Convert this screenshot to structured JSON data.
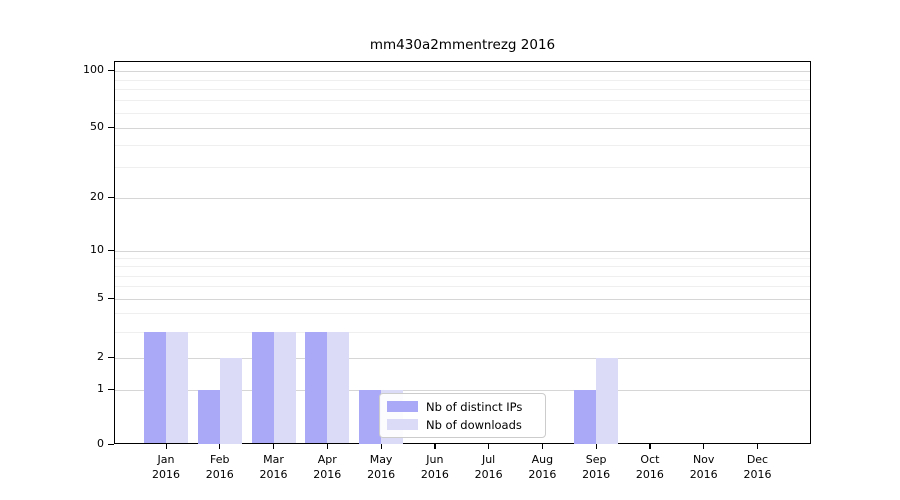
{
  "chart_data": {
    "type": "bar",
    "title": "mm430a2mmentrezg 2016",
    "categories": [
      "Jan 2016",
      "Feb 2016",
      "Mar 2016",
      "Apr 2016",
      "May 2016",
      "Jun 2016",
      "Jul 2016",
      "Aug 2016",
      "Sep 2016",
      "Oct 2016",
      "Nov 2016",
      "Dec 2016"
    ],
    "series": [
      {
        "name": "Nb of distinct IPs",
        "color": "#a9a9f7",
        "values": [
          3,
          1,
          3,
          3,
          1,
          0,
          0,
          0,
          1,
          0,
          0,
          0
        ]
      },
      {
        "name": "Nb of downloads",
        "color": "#dbdbf7",
        "values": [
          3,
          2,
          3,
          3,
          1,
          0,
          0,
          0,
          2,
          0,
          0,
          0
        ]
      }
    ],
    "xlabel": "",
    "ylabel": "",
    "yscale": "symlog",
    "ylim": [
      0,
      100
    ],
    "y_major_ticks": [
      0,
      1,
      2,
      5,
      10,
      20,
      50,
      100
    ],
    "y_minor_ticks": [
      3,
      4,
      6,
      7,
      8,
      9,
      30,
      40,
      60,
      70,
      80,
      90
    ],
    "grid": true,
    "legend_position": "lower center inside",
    "colors": {
      "background": "#ffffff",
      "axis": "#000000",
      "major_grid": "#d6d6d6",
      "minor_grid": "#efefef",
      "distinct_ips_bar": "#a9a9f7",
      "downloads_bar": "#dbdbf7"
    }
  }
}
